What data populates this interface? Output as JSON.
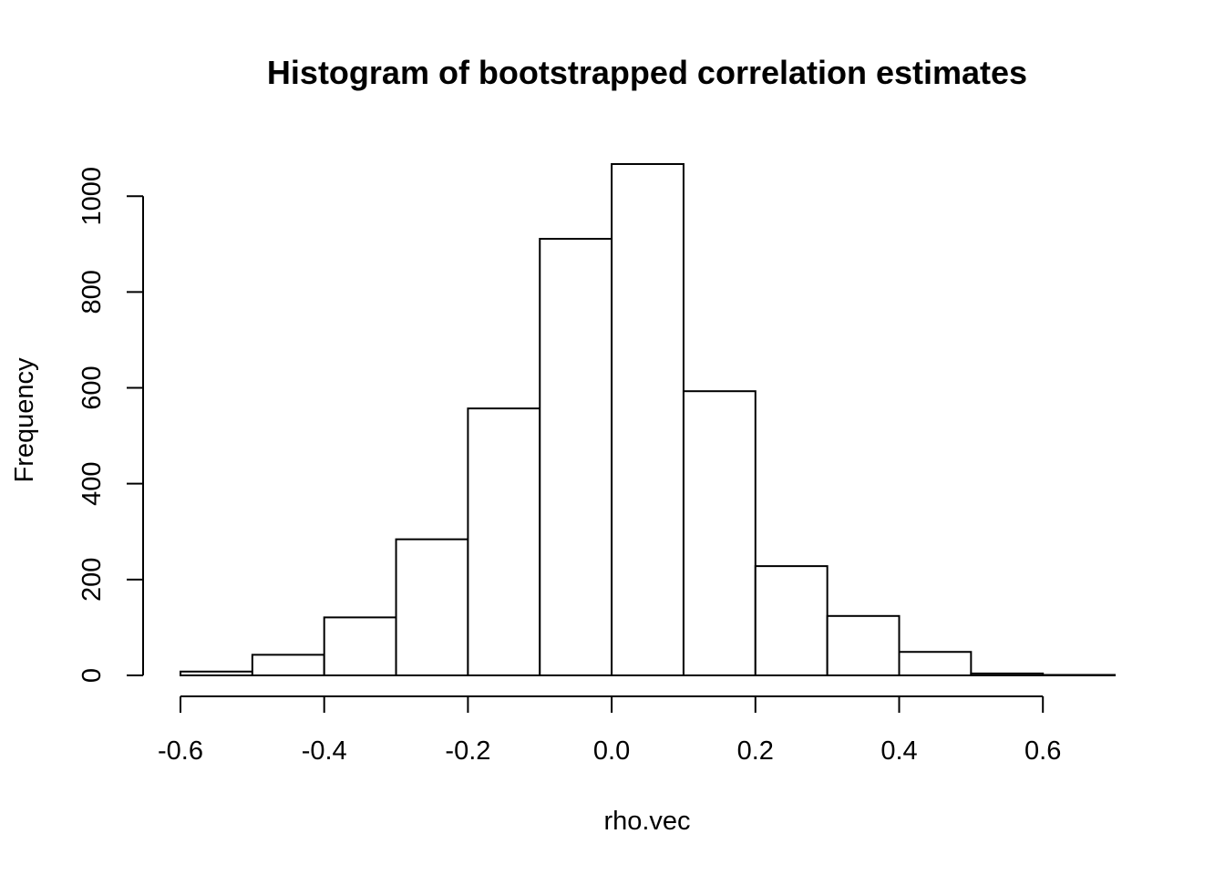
{
  "chart_data": {
    "type": "bar",
    "title": "Histogram of bootstrapped correlation estimates",
    "xlabel": "rho.vec",
    "ylabel": "Frequency",
    "bin_edges": [
      -0.6,
      -0.5,
      -0.4,
      -0.3,
      -0.2,
      -0.1,
      0.0,
      0.1,
      0.2,
      0.3,
      0.4,
      0.5,
      0.6,
      0.7
    ],
    "values": [
      8,
      43,
      121,
      284,
      557,
      911,
      1067,
      593,
      228,
      124,
      49,
      4,
      1
    ],
    "xlim": [
      -0.6,
      0.7
    ],
    "ylim": [
      0,
      1067
    ],
    "x_ticks": [
      -0.6,
      -0.4,
      -0.2,
      0.0,
      0.2,
      0.4,
      0.6
    ],
    "x_tick_labels": [
      "-0.6",
      "-0.4",
      "-0.2",
      "0.0",
      "0.2",
      "0.4",
      "0.6"
    ],
    "y_ticks": [
      0,
      200,
      400,
      600,
      800,
      1000
    ],
    "y_tick_labels": [
      "0",
      "200",
      "400",
      "600",
      "800",
      "1000"
    ],
    "grid": false,
    "colors": {
      "bar_fill": "#ffffff",
      "bar_stroke": "#000000"
    }
  }
}
